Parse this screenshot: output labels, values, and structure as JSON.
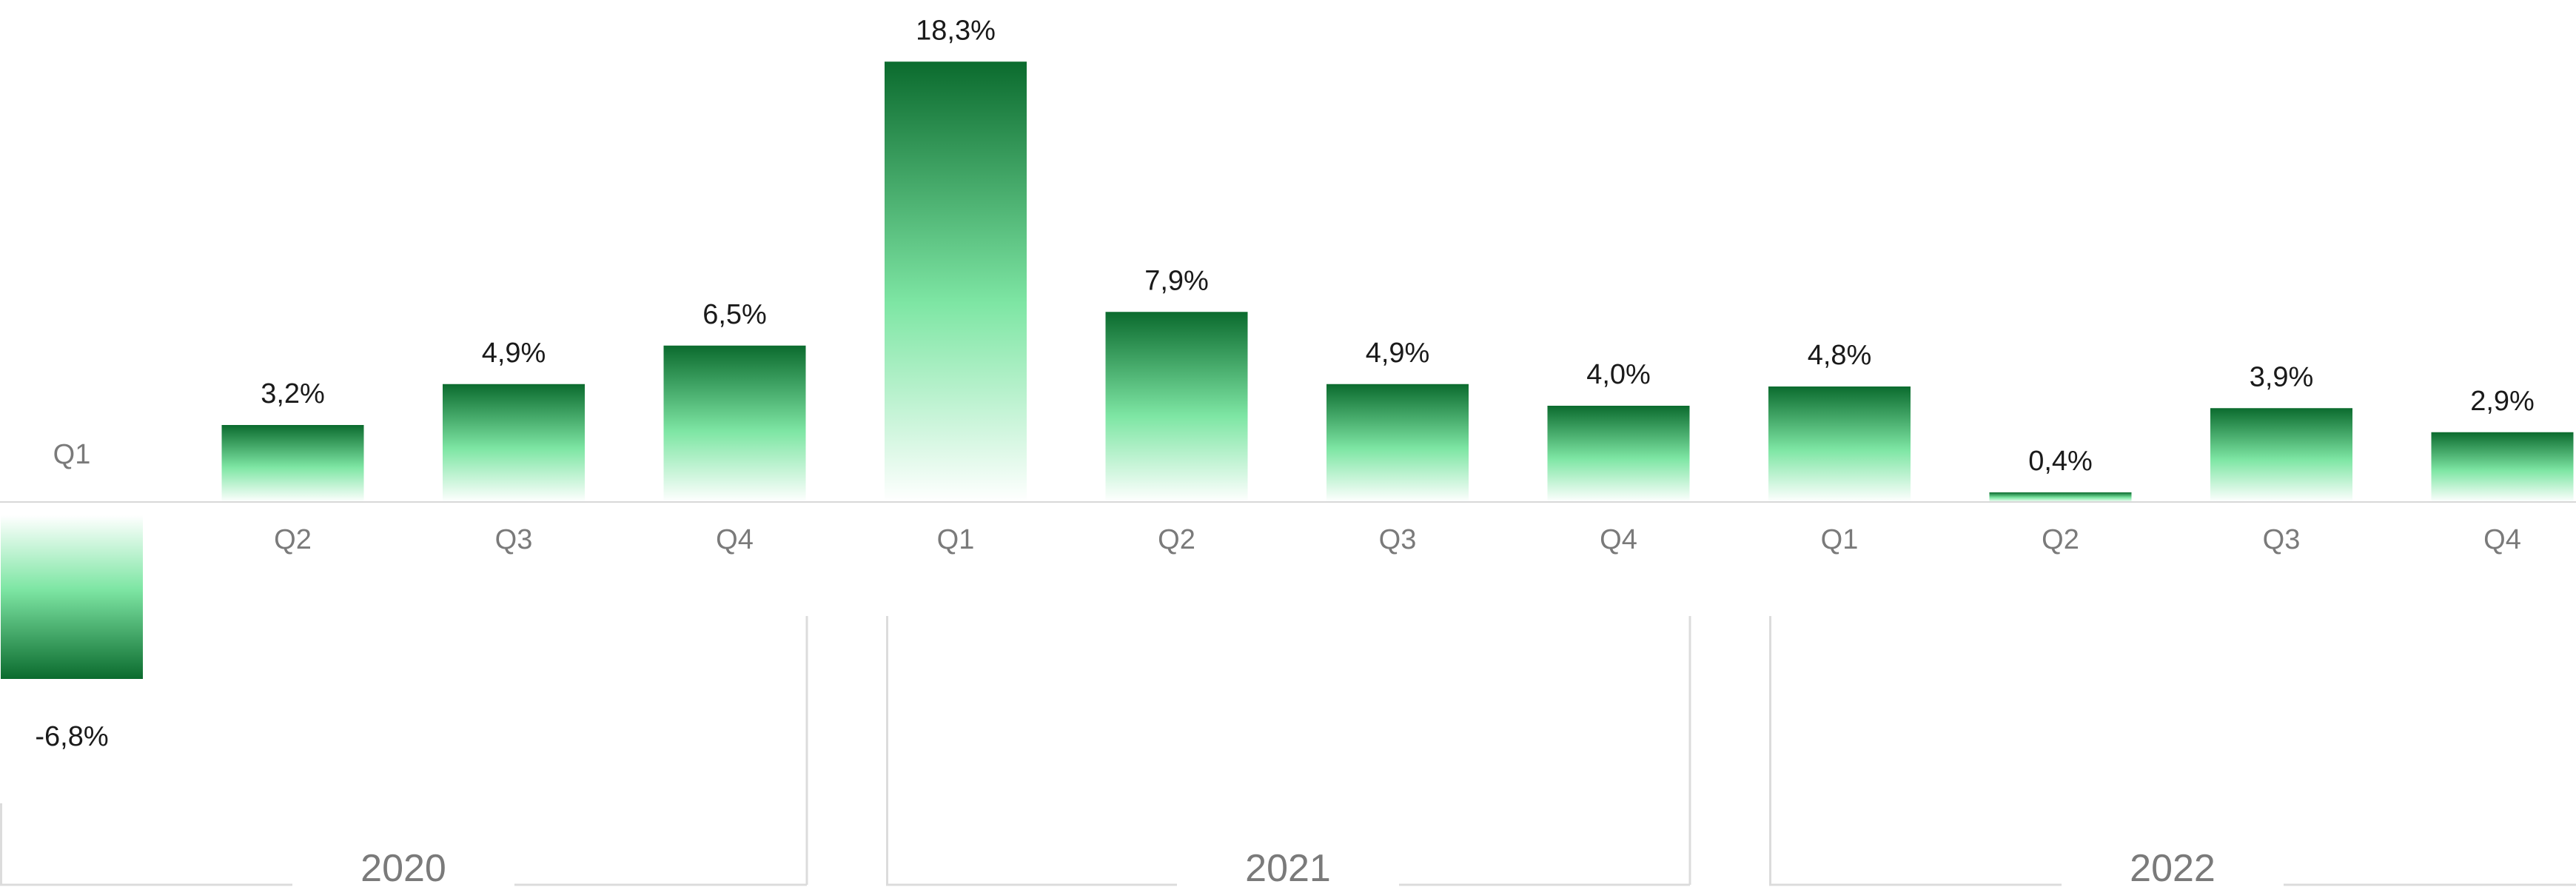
{
  "chart_data": {
    "type": "bar",
    "categories": [
      "Q1",
      "Q2",
      "Q3",
      "Q4",
      "Q1",
      "Q2",
      "Q3",
      "Q4",
      "Q1",
      "Q2",
      "Q3",
      "Q4"
    ],
    "groups": [
      {
        "label": "2020",
        "quarters": [
          "Q1",
          "Q2",
          "Q3",
          "Q4"
        ]
      },
      {
        "label": "2021",
        "quarters": [
          "Q1",
          "Q2",
          "Q3",
          "Q4"
        ]
      },
      {
        "label": "2022",
        "quarters": [
          "Q1",
          "Q2",
          "Q3",
          "Q4"
        ]
      }
    ],
    "series": [
      {
        "values": [
          -6.8,
          3.2,
          4.9,
          6.5,
          18.3,
          7.9,
          4.9,
          4.0,
          4.8,
          0.4,
          3.9,
          2.9
        ],
        "value_labels": [
          "-6,8%",
          "3,2%",
          "4,9%",
          "6,5%",
          "18,3%",
          "7,9%",
          "4,9%",
          "4,0%",
          "4,8%",
          "0,4%",
          "3,9%",
          "2,9%"
        ]
      }
    ],
    "title": "",
    "xlabel": "",
    "ylabel": "",
    "ylim": [
      -6.8,
      18.3
    ],
    "grid": false,
    "colors": {
      "bar_dark": "#0b6b2e",
      "bar_mid": "#7ee6a4",
      "bar_light": "#ffffff",
      "baseline": "#d8d8d8",
      "bracket": "#dcdcdc"
    }
  }
}
